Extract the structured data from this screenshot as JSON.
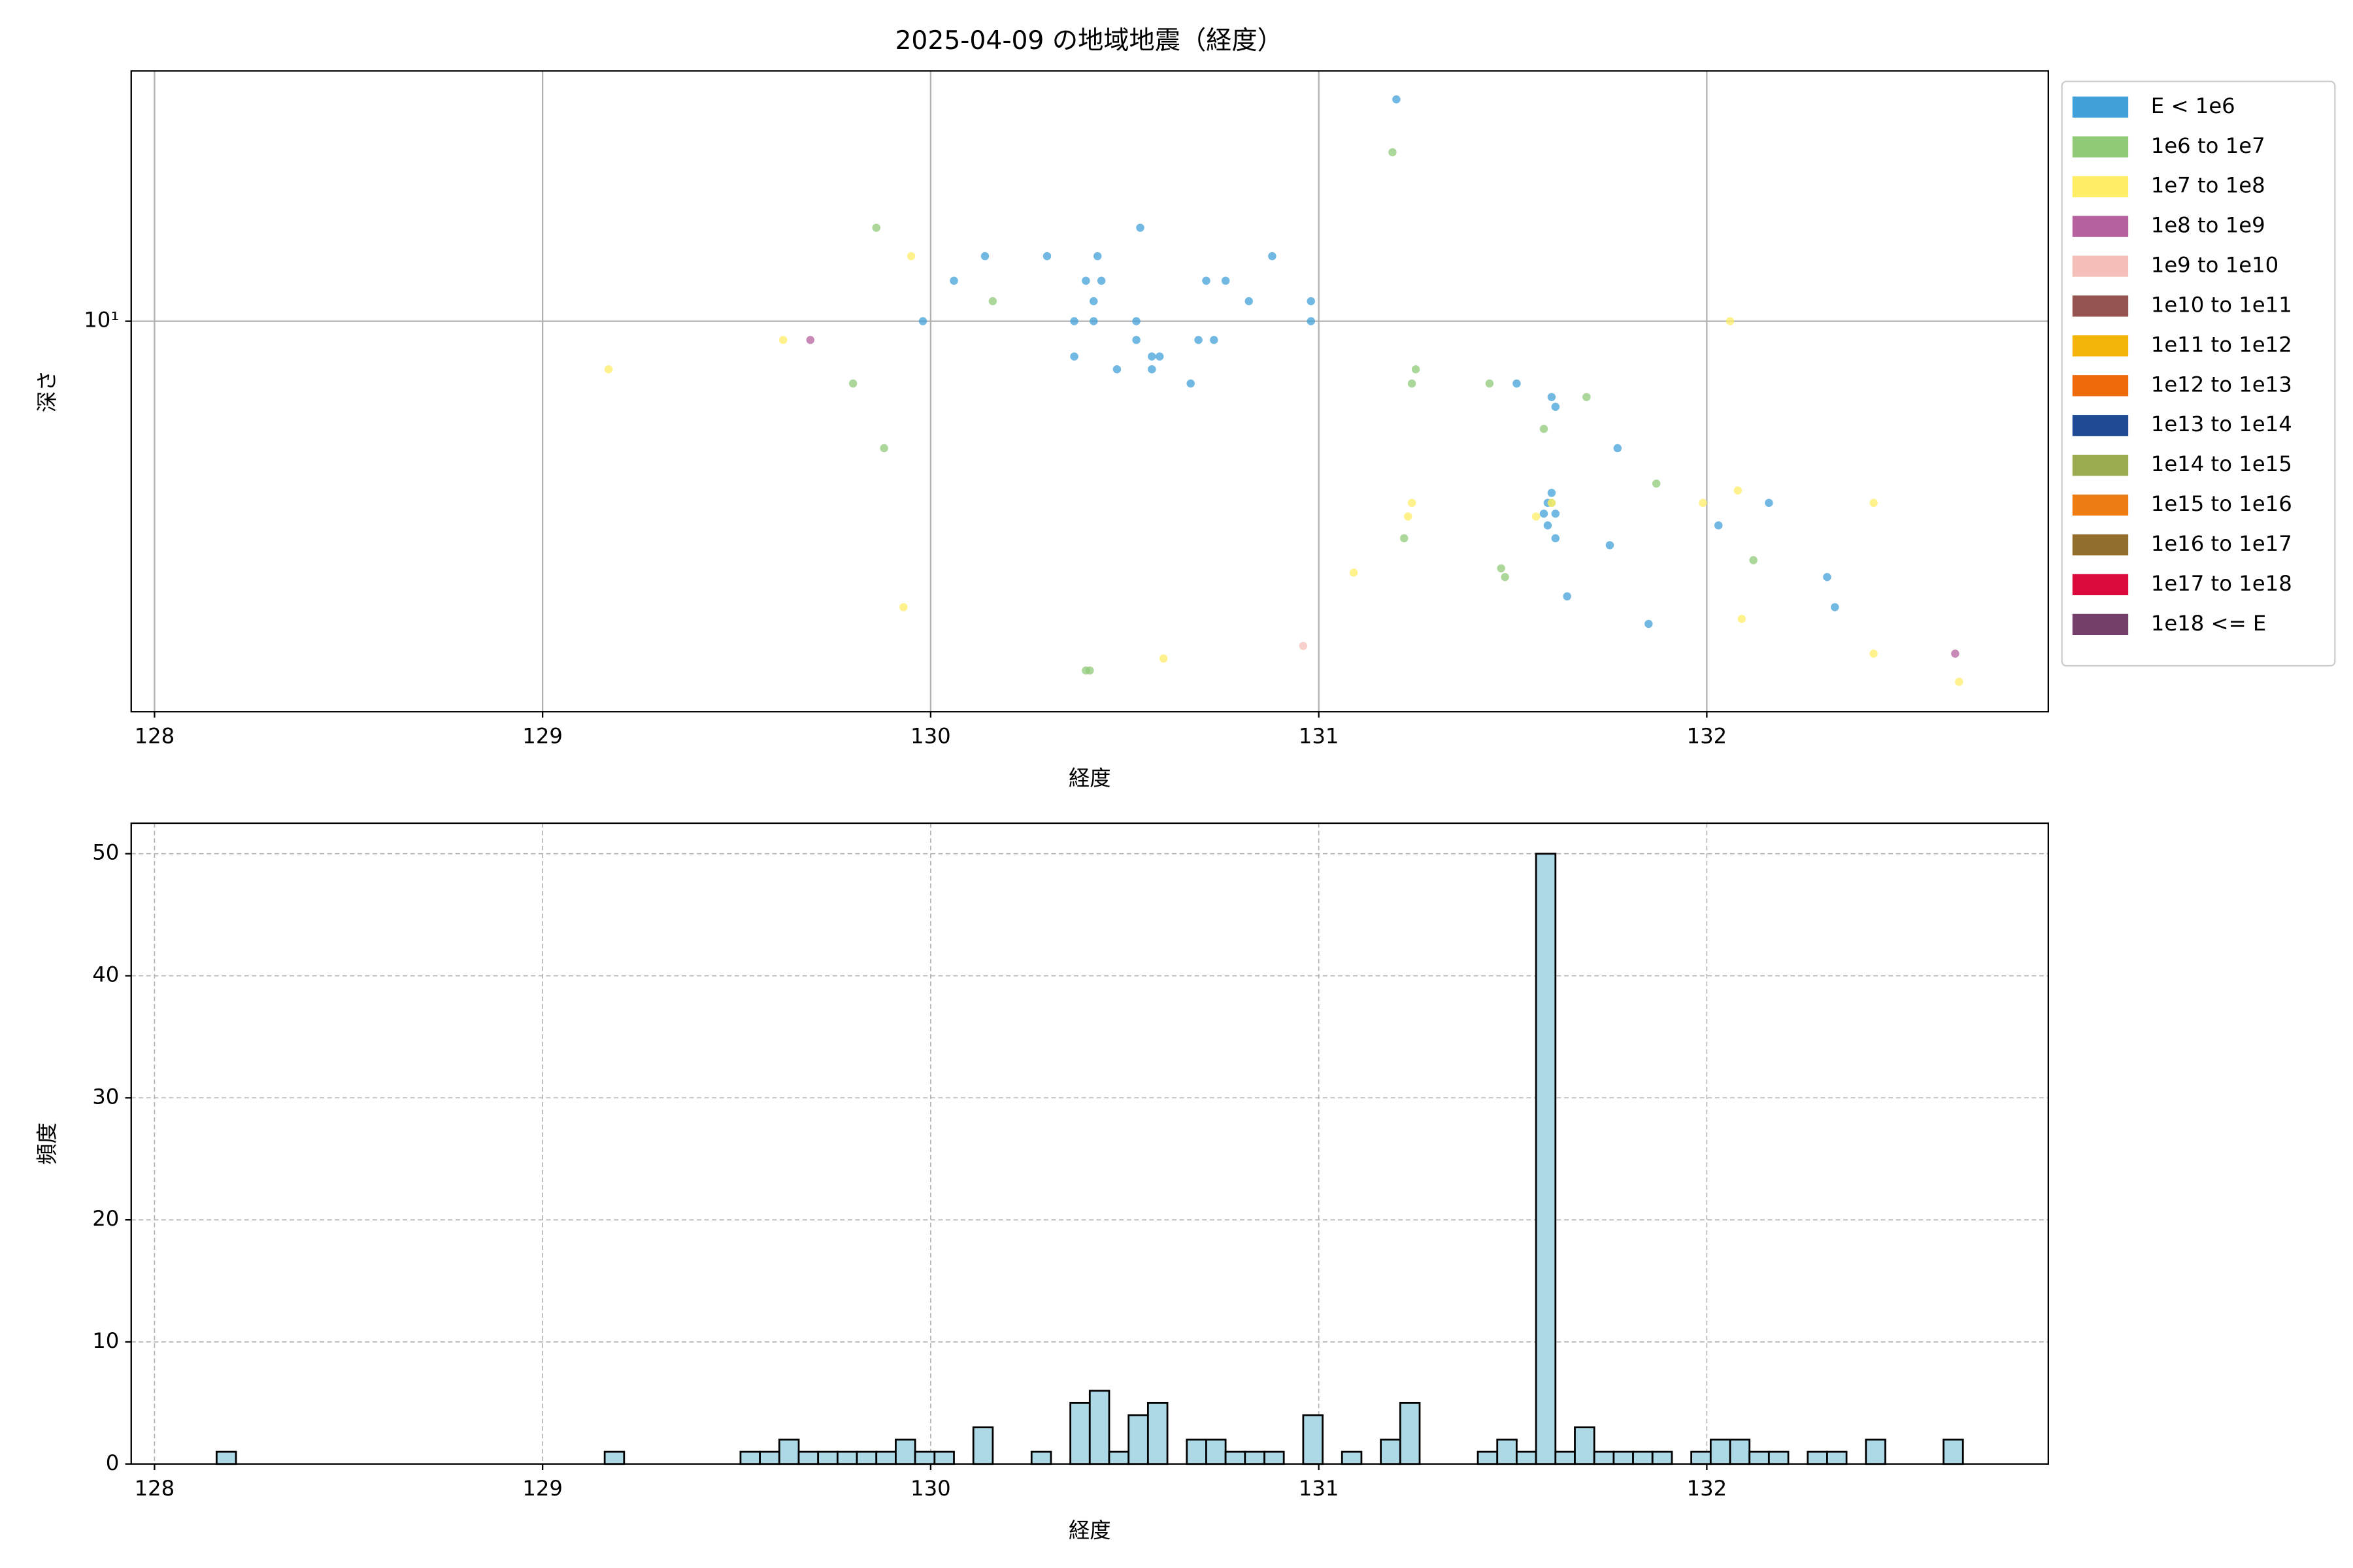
{
  "chart_data": [
    {
      "type": "scatter",
      "title": "2025-04-09 の地域地震（経度）",
      "xlabel": "経度",
      "ylabel": "深さ",
      "xlim": [
        127.94,
        132.88
      ],
      "ylim": [
        0.553,
        64
      ],
      "yscale": "log",
      "xticks": [
        128,
        129,
        130,
        131,
        132
      ],
      "yticks": [
        {
          "value": 10,
          "label": "10¹"
        }
      ],
      "grid": true,
      "legend": "outside upper right",
      "series": [
        {
          "name": "E < 1e6",
          "color": "#41a0d8",
          "x": [
            131.2,
            130.14,
            130.3,
            130.43,
            130.54,
            130.88,
            130.06,
            130.4,
            130.44,
            130.71,
            130.76,
            129.98,
            130.37,
            130.42,
            130.53,
            130.98,
            130.42,
            130.82,
            130.98,
            130.53,
            130.69,
            130.73,
            130.37,
            130.48,
            130.57,
            130.57,
            130.59,
            130.67,
            131.51,
            131.6,
            131.61,
            131.77,
            131.6,
            131.59,
            131.58,
            131.61,
            131.59,
            131.61,
            131.75,
            132.03,
            132.16,
            132.31,
            132.33,
            131.64,
            131.85
          ],
          "values": [
            51.8,
            16.2,
            16.2,
            16.2,
            20.0,
            16.2,
            13.5,
            13.5,
            13.5,
            13.5,
            13.5,
            10,
            10,
            10,
            10,
            10,
            11.6,
            11.6,
            11.6,
            8.7,
            8.7,
            8.7,
            7.7,
            7.0,
            7.0,
            7.7,
            7.7,
            6.3,
            6.3,
            5.7,
            5.3,
            3.9,
            2.8,
            2.6,
            2.4,
            2.4,
            2.2,
            2.0,
            1.9,
            2.2,
            2.6,
            1.5,
            1.2,
            1.3,
            1.06
          ]
        },
        {
          "name": "1e6 to 1e7",
          "color": "#90c978",
          "x": [
            131.19,
            129.86,
            130.16,
            129.8,
            129.88,
            131.25,
            131.24,
            131.44,
            131.69,
            131.58,
            131.87,
            131.22,
            131.47,
            131.48,
            132.12,
            130.4,
            130.41,
            131.6
          ],
          "values": [
            35.0,
            20.0,
            11.6,
            6.3,
            3.9,
            7.0,
            6.3,
            6.3,
            5.7,
            4.5,
            3.0,
            2.0,
            1.6,
            1.5,
            1.7,
            0.75,
            0.75,
            2.6
          ]
        },
        {
          "name": "1e7 to 1e8",
          "color": "#ffee66",
          "x": [
            129.17,
            129.62,
            129.95,
            129.93,
            130.6,
            131.09,
            131.24,
            131.23,
            131.56,
            131.6,
            132.06,
            131.99,
            132.08,
            132.09,
            132.43,
            132.43,
            132.65
          ],
          "values": [
            7.0,
            8.7,
            16.2,
            1.2,
            0.82,
            1.55,
            2.6,
            2.35,
            2.35,
            2.6,
            10,
            2.6,
            2.85,
            1.1,
            2.6,
            0.85,
            0.69
          ]
        },
        {
          "name": "1e8 to 1e9",
          "color": "#b5629e",
          "x": [
            129.69,
            132.64
          ],
          "values": [
            8.7,
            0.85
          ]
        },
        {
          "name": "1e9 to 1e10",
          "color": "#f4c0b9",
          "x": [
            130.96
          ],
          "values": [
            0.9
          ]
        },
        {
          "name": "1e10 to 1e11",
          "color": "#965450",
          "x": [],
          "values": []
        },
        {
          "name": "1e11 to 1e12",
          "color": "#f5b40a",
          "x": [],
          "values": []
        },
        {
          "name": "1e12 to 1e13",
          "color": "#ee6a0a",
          "x": [],
          "values": []
        },
        {
          "name": "1e13 to 1e14",
          "color": "#1f4b94",
          "x": [],
          "values": []
        },
        {
          "name": "1e14 to 1e15",
          "color": "#9bab51",
          "x": [],
          "values": []
        },
        {
          "name": "1e15 to 1e16",
          "color": "#ed7d12",
          "x": [],
          "values": []
        },
        {
          "name": "1e16 to 1e17",
          "color": "#936d2c",
          "x": [],
          "values": []
        },
        {
          "name": "1e17 to 1e18",
          "color": "#dc0a3c",
          "x": [],
          "values": []
        },
        {
          "name": "1e18 <= E",
          "color": "#763f6b",
          "x": [],
          "values": []
        }
      ]
    },
    {
      "type": "histogram",
      "xlabel": "経度",
      "ylabel": "頻度",
      "color": "#add8e6",
      "edgecolor": "#000000",
      "xlim": [
        127.94,
        132.88
      ],
      "ylim": [
        0,
        52.5
      ],
      "xticks": [
        128,
        129,
        130,
        131,
        132
      ],
      "yticks": [
        0,
        10,
        20,
        30,
        40,
        50
      ],
      "grid": "dashed",
      "bins": [
        128.16,
        128.21,
        128.26,
        128.31,
        128.36,
        128.41,
        128.46,
        128.51,
        128.56,
        128.61,
        128.66,
        128.71,
        128.76,
        128.81,
        128.86,
        128.91,
        128.96,
        129.01,
        129.06,
        129.11,
        129.16,
        129.21,
        129.26,
        129.31,
        129.36,
        129.41,
        129.46,
        129.51,
        129.56,
        129.61,
        129.66,
        129.71,
        129.76,
        129.81,
        129.86,
        129.91,
        129.96,
        130.01,
        130.06,
        130.11,
        130.16,
        130.21,
        130.26,
        130.31,
        130.36,
        130.41,
        130.46,
        130.51,
        130.56,
        130.61,
        130.66,
        130.71,
        130.76,
        130.81,
        130.86,
        130.91,
        130.96,
        131.01,
        131.06,
        131.11,
        131.16,
        131.21,
        131.26,
        131.31,
        131.36,
        131.41,
        131.46,
        131.51,
        131.56,
        131.61,
        131.66,
        131.71,
        131.76,
        131.81,
        131.86,
        131.91,
        131.96,
        132.01,
        132.06,
        132.11,
        132.16,
        132.21,
        132.26,
        132.31,
        132.36,
        132.41,
        132.46,
        132.51,
        132.56,
        132.61,
        132.66
      ],
      "values": [
        1,
        0,
        0,
        0,
        0,
        0,
        0,
        0,
        0,
        0,
        0,
        0,
        0,
        0,
        0,
        0,
        0,
        0,
        0,
        0,
        1,
        0,
        0,
        0,
        0,
        0,
        0,
        1,
        1,
        2,
        1,
        1,
        1,
        1,
        1,
        2,
        1,
        1,
        0,
        3,
        0,
        0,
        1,
        0,
        5,
        6,
        1,
        4,
        5,
        0,
        2,
        2,
        1,
        1,
        1,
        0,
        4,
        0,
        1,
        0,
        2,
        5,
        0,
        0,
        0,
        1,
        2,
        1,
        50,
        1,
        3,
        1,
        1,
        1,
        1,
        0,
        1,
        2,
        2,
        1,
        1,
        0,
        1,
        1,
        0,
        2,
        0,
        0,
        0,
        2
      ]
    }
  ]
}
